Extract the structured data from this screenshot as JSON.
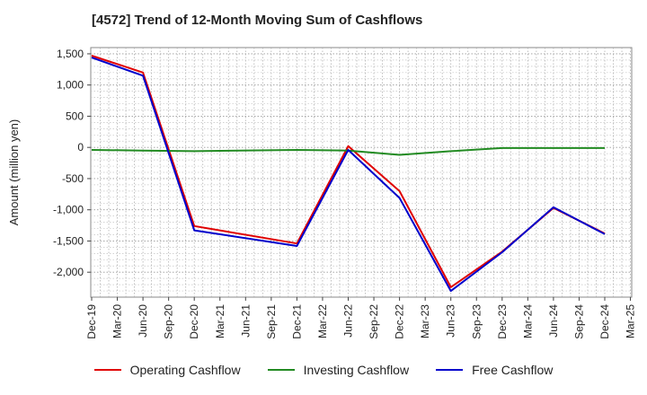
{
  "title": "[4572]  Trend of 12-Month Moving Sum of Cashflows",
  "chart_data": {
    "type": "line",
    "title": "[4572]  Trend of 12-Month Moving Sum of Cashflows",
    "xlabel": "",
    "ylabel": "Amount (million yen)",
    "ylim": [
      -2400,
      1600
    ],
    "yticks": [
      1500,
      1000,
      500,
      0,
      -500,
      -1000,
      -1500,
      -2000
    ],
    "ytick_labels": [
      "1,500",
      "1,000",
      "500",
      "0",
      "-500",
      "-1,000",
      "-1,500",
      "-2,000"
    ],
    "categories": [
      "Dec-19",
      "Mar-20",
      "Jun-20",
      "Sep-20",
      "Dec-20",
      "Mar-21",
      "Jun-21",
      "Sep-21",
      "Dec-21",
      "Mar-22",
      "Jun-22",
      "Sep-22",
      "Dec-22",
      "Mar-23",
      "Jun-23",
      "Sep-23",
      "Dec-23",
      "Mar-24",
      "Jun-24",
      "Sep-24",
      "Dec-24",
      "Mar-25"
    ],
    "grid": true,
    "legend_position": "bottom",
    "series": [
      {
        "name": "Operating Cashflow",
        "color": "#e00000",
        "values": [
          1470,
          null,
          1200,
          null,
          -1260,
          null,
          null,
          null,
          -1540,
          null,
          20,
          null,
          -700,
          null,
          -2240,
          null,
          -1670,
          null,
          -970,
          null,
          -1380,
          null
        ]
      },
      {
        "name": "Investing Cashflow",
        "color": "#228b22",
        "values": [
          -40,
          null,
          -50,
          null,
          -60,
          null,
          null,
          null,
          -40,
          null,
          -50,
          null,
          -120,
          null,
          -60,
          null,
          -10,
          null,
          -10,
          null,
          -10,
          null
        ]
      },
      {
        "name": "Free Cashflow",
        "color": "#0000cc",
        "values": [
          1440,
          null,
          1150,
          null,
          -1330,
          null,
          null,
          null,
          -1580,
          null,
          -40,
          null,
          -810,
          null,
          -2300,
          null,
          -1680,
          null,
          -960,
          null,
          -1390,
          null
        ]
      }
    ]
  }
}
